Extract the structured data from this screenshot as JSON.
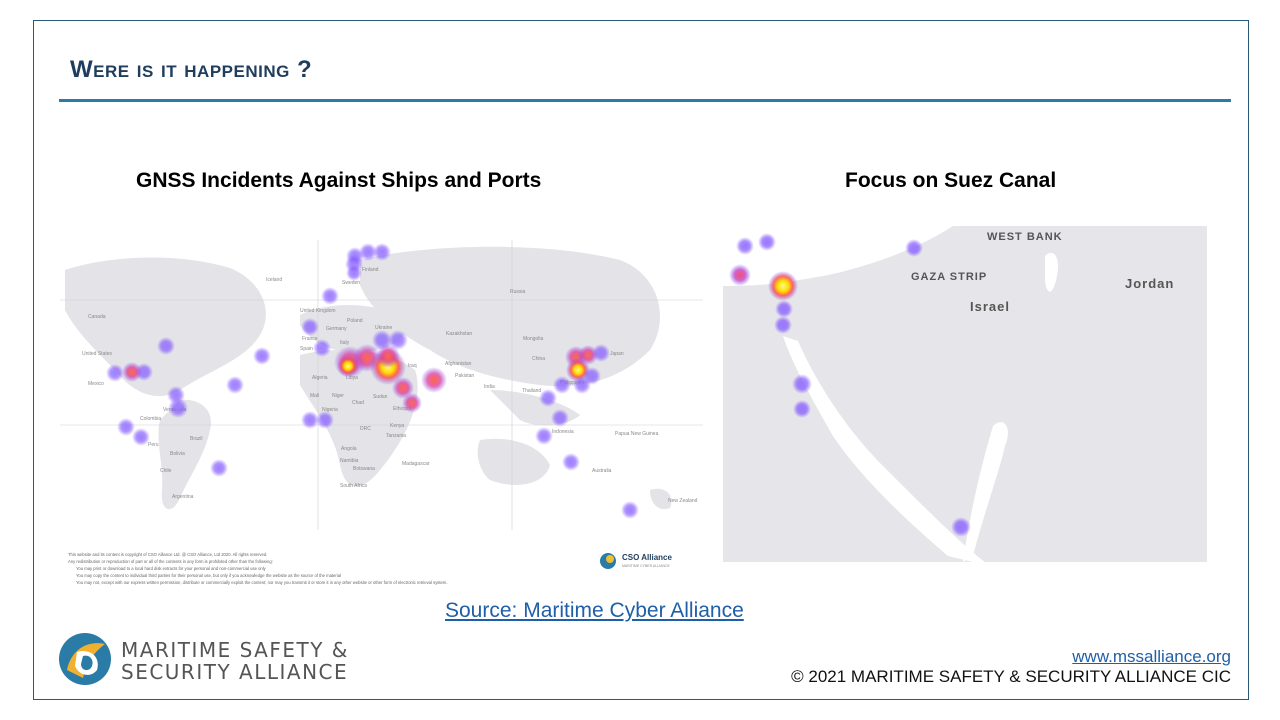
{
  "slide": {
    "title": "Were is it happening ?",
    "left_heading": "GNSS Incidents Against Ships and Ports",
    "right_heading": "Focus on Suez Canal",
    "source_link": "Source: Maritime Cyber Alliance ",
    "website": "www.mssalliance.org",
    "copyright": "© 2021 MARITIME SAFETY & SECURITY ALLIANCE CIC"
  },
  "org": {
    "line1": "MARITIME SAFETY &",
    "line2": "SECURITY ALLIANCE"
  },
  "world_map": {
    "labels": [
      "Finland",
      "Sweden",
      "Iceland",
      "Russia",
      "Poland",
      "Ukraine",
      "Germany",
      "United Kingdom",
      "France",
      "Spain",
      "Italy",
      "Canada",
      "United States",
      "Mexico",
      "Kazakhstan",
      "Mongolia",
      "China",
      "Japan",
      "Afghanistan",
      "Pakistan",
      "India",
      "Iraq",
      "Libya",
      "Algeria",
      "Mali",
      "Niger",
      "Chad",
      "Sudan",
      "Ethiopia",
      "Nigeria",
      "Kenya",
      "DRC",
      "Tanzania",
      "Angola",
      "Namibia",
      "Botswana",
      "Madagascar",
      "South Africa",
      "Colombia",
      "Venezuela",
      "Brazil",
      "Peru",
      "Bolivia",
      "Chile",
      "Argentina",
      "Thailand",
      "Philippines",
      "Indonesia",
      "Papua New Guinea",
      "Australia",
      "New Zealand"
    ]
  },
  "suez_map": {
    "labels": [
      "WEST BANK",
      "GAZA STRIP",
      "Israel",
      "Jordan"
    ]
  },
  "notice": {
    "lines": [
      "This website and its content is copyright of CSO Alliance Ltd. @ CSO Alliance, Ltd 2020. All rights reserved.",
      "Any redistribution or reproduction of part or all of the contents in any form is prohibited other than the following:",
      "You may print or download to a local hard disk extracts for your personal and non-commercial use only",
      "You may copy the content to individual third parties for their personal use, but only if you acknowledge the website as the source of the material",
      "You may not, except with our express written permission, distribute or commercially exploit the content; nor may you transmit it or store it in any other website or other form of electronic retrieval system."
    ],
    "logo_title": "CSO Alliance",
    "logo_subtitle": "MARITIME CYBER ALLIANCE"
  },
  "colors": {
    "title": "#1f3d5c",
    "rule": "#2a7ca6",
    "link": "#1f5fa8",
    "heat_low": "#8b5cf6",
    "heat_mid": "#ff4d4d",
    "heat_high": "#ffff66"
  }
}
